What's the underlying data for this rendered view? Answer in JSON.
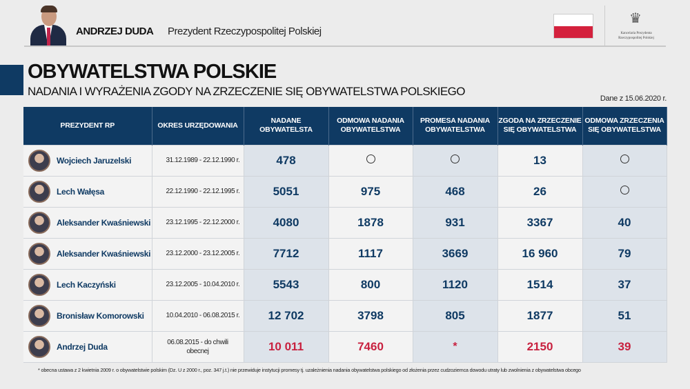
{
  "header": {
    "name": "ANDRZEJ DUDA",
    "subtitle": "Prezydent Rzeczypospolitej Polskiej",
    "office": "Kancelaria Prezydenta Rzeczypospolitej Polskiej",
    "flag_colors": [
      "#ffffff",
      "#d4213d"
    ]
  },
  "title": "OBYWATELSTWA POLSKIE",
  "subtitle": "NADANIA I WYRAŻENIA ZGODY NA ZRZECZENIE SIĘ OBYWATELSTWA POLSKIEGO",
  "date": "Dane z 15.06.2020 r.",
  "columns": [
    "PREZYDENT RP",
    "OKRES URZĘDOWANIA",
    "NADANE OBYWATELSTA",
    "ODMOWA NADANIA OBYWATELSTWA",
    "PROMESA NADANIA OBYWATELSTWA",
    "ZGODA NA ZRZECZENIE SIĘ OBYWATELSTWA",
    "ODMOWA ZRZECZENIA SIĘ OBYWATELSTWA"
  ],
  "rows": [
    {
      "president": "Wojciech Jaruzelski",
      "period": "31.12.1989 - 22.12.1990 r.",
      "values": [
        "478",
        "○",
        "○",
        "13",
        "○"
      ]
    },
    {
      "president": "Lech Wałęsa",
      "period": "22.12.1990 - 22.12.1995 r.",
      "values": [
        "5051",
        "975",
        "468",
        "26",
        "○"
      ]
    },
    {
      "president": "Aleksander Kwaśniewski",
      "period": "23.12.1995 - 22.12.2000 r.",
      "values": [
        "4080",
        "1878",
        "931",
        "3367",
        "40"
      ]
    },
    {
      "president": "Aleksander Kwaśniewski",
      "period": "23.12.2000 - 23.12.2005 r.",
      "values": [
        "7712",
        "1117",
        "3669",
        "16 960",
        "79"
      ]
    },
    {
      "president": "Lech Kaczyński",
      "period": "23.12.2005 - 10.04.2010 r.",
      "values": [
        "5543",
        "800",
        "1120",
        "1514",
        "37"
      ]
    },
    {
      "president": "Bronisław Komorowski",
      "period": "10.04.2010 - 06.08.2015 r.",
      "values": [
        "12 702",
        "3798",
        "805",
        "1877",
        "51"
      ]
    },
    {
      "president": "Andrzej Duda",
      "period": "06.08.2015 - do chwili obecnej",
      "values": [
        "10 011",
        "7460",
        "*",
        "2150",
        "39"
      ],
      "highlight": "#c8213f"
    }
  ],
  "footnote": "* obecna ustawa z 2 kwietnia 2009 r. o obywatelstwie polskim (Dz. U z 2000 r., poz. 347 j.t.) nie przewiduje instytucji promesy tj. uzależnienia nadania obywatelstwa polskiego od złożenia przez cudzoziemca dowodu utraty lub zwolnienia z obywatelstwa obcego",
  "colors": {
    "navy": "#0f3a63",
    "red": "#c8213f"
  }
}
